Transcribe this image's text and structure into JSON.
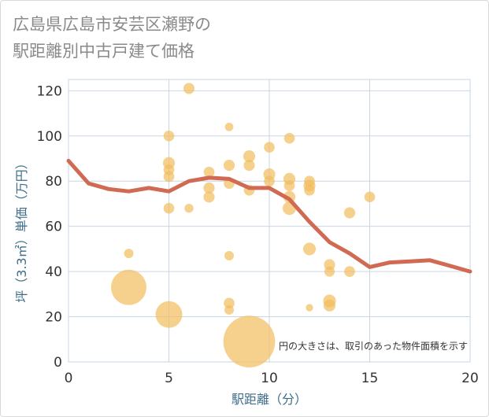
{
  "title_lines": [
    "広島県広島市安芸区瀬野の",
    "駅距離別中古戸建て価格"
  ],
  "note": "円の大きさは、取引のあった物件面積を示す",
  "chart_data": {
    "type": "scatter",
    "xlabel": "駅距離（分）",
    "ylabel": "坪（3.3㎡）単価（万円）",
    "xlim": [
      0,
      20
    ],
    "ylim": [
      0,
      125
    ],
    "xticks": [
      0,
      5,
      10,
      15,
      20
    ],
    "yticks": [
      0,
      20,
      40,
      60,
      80,
      100,
      120
    ],
    "grid": true,
    "colors": {
      "bubble": "#f2bd5e",
      "line": "#d16a52",
      "grid": "#c9d6e3",
      "axis_text": "#3f6d8a"
    },
    "bubbles": [
      {
        "x": 3,
        "y": 48,
        "size": 1
      },
      {
        "x": 3,
        "y": 33,
        "size": 14
      },
      {
        "x": 5,
        "y": 100,
        "size": 1.3
      },
      {
        "x": 5,
        "y": 88,
        "size": 1.6
      },
      {
        "x": 5,
        "y": 85,
        "size": 1.3
      },
      {
        "x": 5,
        "y": 82,
        "size": 1.3
      },
      {
        "x": 5,
        "y": 68,
        "size": 1.3
      },
      {
        "x": 5,
        "y": 21,
        "size": 8
      },
      {
        "x": 6,
        "y": 121,
        "size": 1.4
      },
      {
        "x": 6,
        "y": 68,
        "size": 0.9
      },
      {
        "x": 7,
        "y": 84,
        "size": 1.3
      },
      {
        "x": 7,
        "y": 77,
        "size": 1.4
      },
      {
        "x": 7,
        "y": 73,
        "size": 1.4
      },
      {
        "x": 8,
        "y": 104,
        "size": 0.8
      },
      {
        "x": 8,
        "y": 87,
        "size": 1.4
      },
      {
        "x": 8,
        "y": 79,
        "size": 1.3
      },
      {
        "x": 8,
        "y": 47,
        "size": 1
      },
      {
        "x": 8,
        "y": 26,
        "size": 1.3
      },
      {
        "x": 8,
        "y": 23,
        "size": 1
      },
      {
        "x": 9,
        "y": 91,
        "size": 1.6
      },
      {
        "x": 9,
        "y": 87,
        "size": 1.4
      },
      {
        "x": 9,
        "y": 76,
        "size": 1.3
      },
      {
        "x": 9,
        "y": 9,
        "size": 30
      },
      {
        "x": 10,
        "y": 95,
        "size": 1.3
      },
      {
        "x": 10,
        "y": 83,
        "size": 1.6
      },
      {
        "x": 10,
        "y": 80,
        "size": 1.3
      },
      {
        "x": 11,
        "y": 99,
        "size": 1.3
      },
      {
        "x": 11,
        "y": 81,
        "size": 1.6
      },
      {
        "x": 11,
        "y": 78,
        "size": 1.3
      },
      {
        "x": 11,
        "y": 73,
        "size": 1.6
      },
      {
        "x": 11,
        "y": 68,
        "size": 2
      },
      {
        "x": 12,
        "y": 80,
        "size": 1.3
      },
      {
        "x": 12,
        "y": 78,
        "size": 1.6
      },
      {
        "x": 12,
        "y": 76,
        "size": 1.3
      },
      {
        "x": 12,
        "y": 50,
        "size": 1.8
      },
      {
        "x": 12,
        "y": 24,
        "size": 0.6
      },
      {
        "x": 13,
        "y": 43,
        "size": 1.4
      },
      {
        "x": 13,
        "y": 40,
        "size": 1.2
      },
      {
        "x": 13,
        "y": 27,
        "size": 1.8
      },
      {
        "x": 13,
        "y": 25,
        "size": 1.6
      },
      {
        "x": 14,
        "y": 66,
        "size": 1.4
      },
      {
        "x": 14,
        "y": 40,
        "size": 1.3
      },
      {
        "x": 15,
        "y": 73,
        "size": 1.3
      }
    ],
    "trend_line": {
      "x": [
        0,
        1,
        2,
        3,
        4,
        5,
        6,
        7,
        8,
        9,
        10,
        11,
        12,
        13,
        14,
        15,
        16,
        17,
        18,
        19,
        20
      ],
      "y": [
        89,
        79,
        76.5,
        75.5,
        77,
        75.5,
        80,
        81.5,
        81,
        77,
        77,
        72,
        62,
        53,
        48,
        42,
        44,
        44.5,
        45,
        42.5,
        40
      ]
    }
  }
}
